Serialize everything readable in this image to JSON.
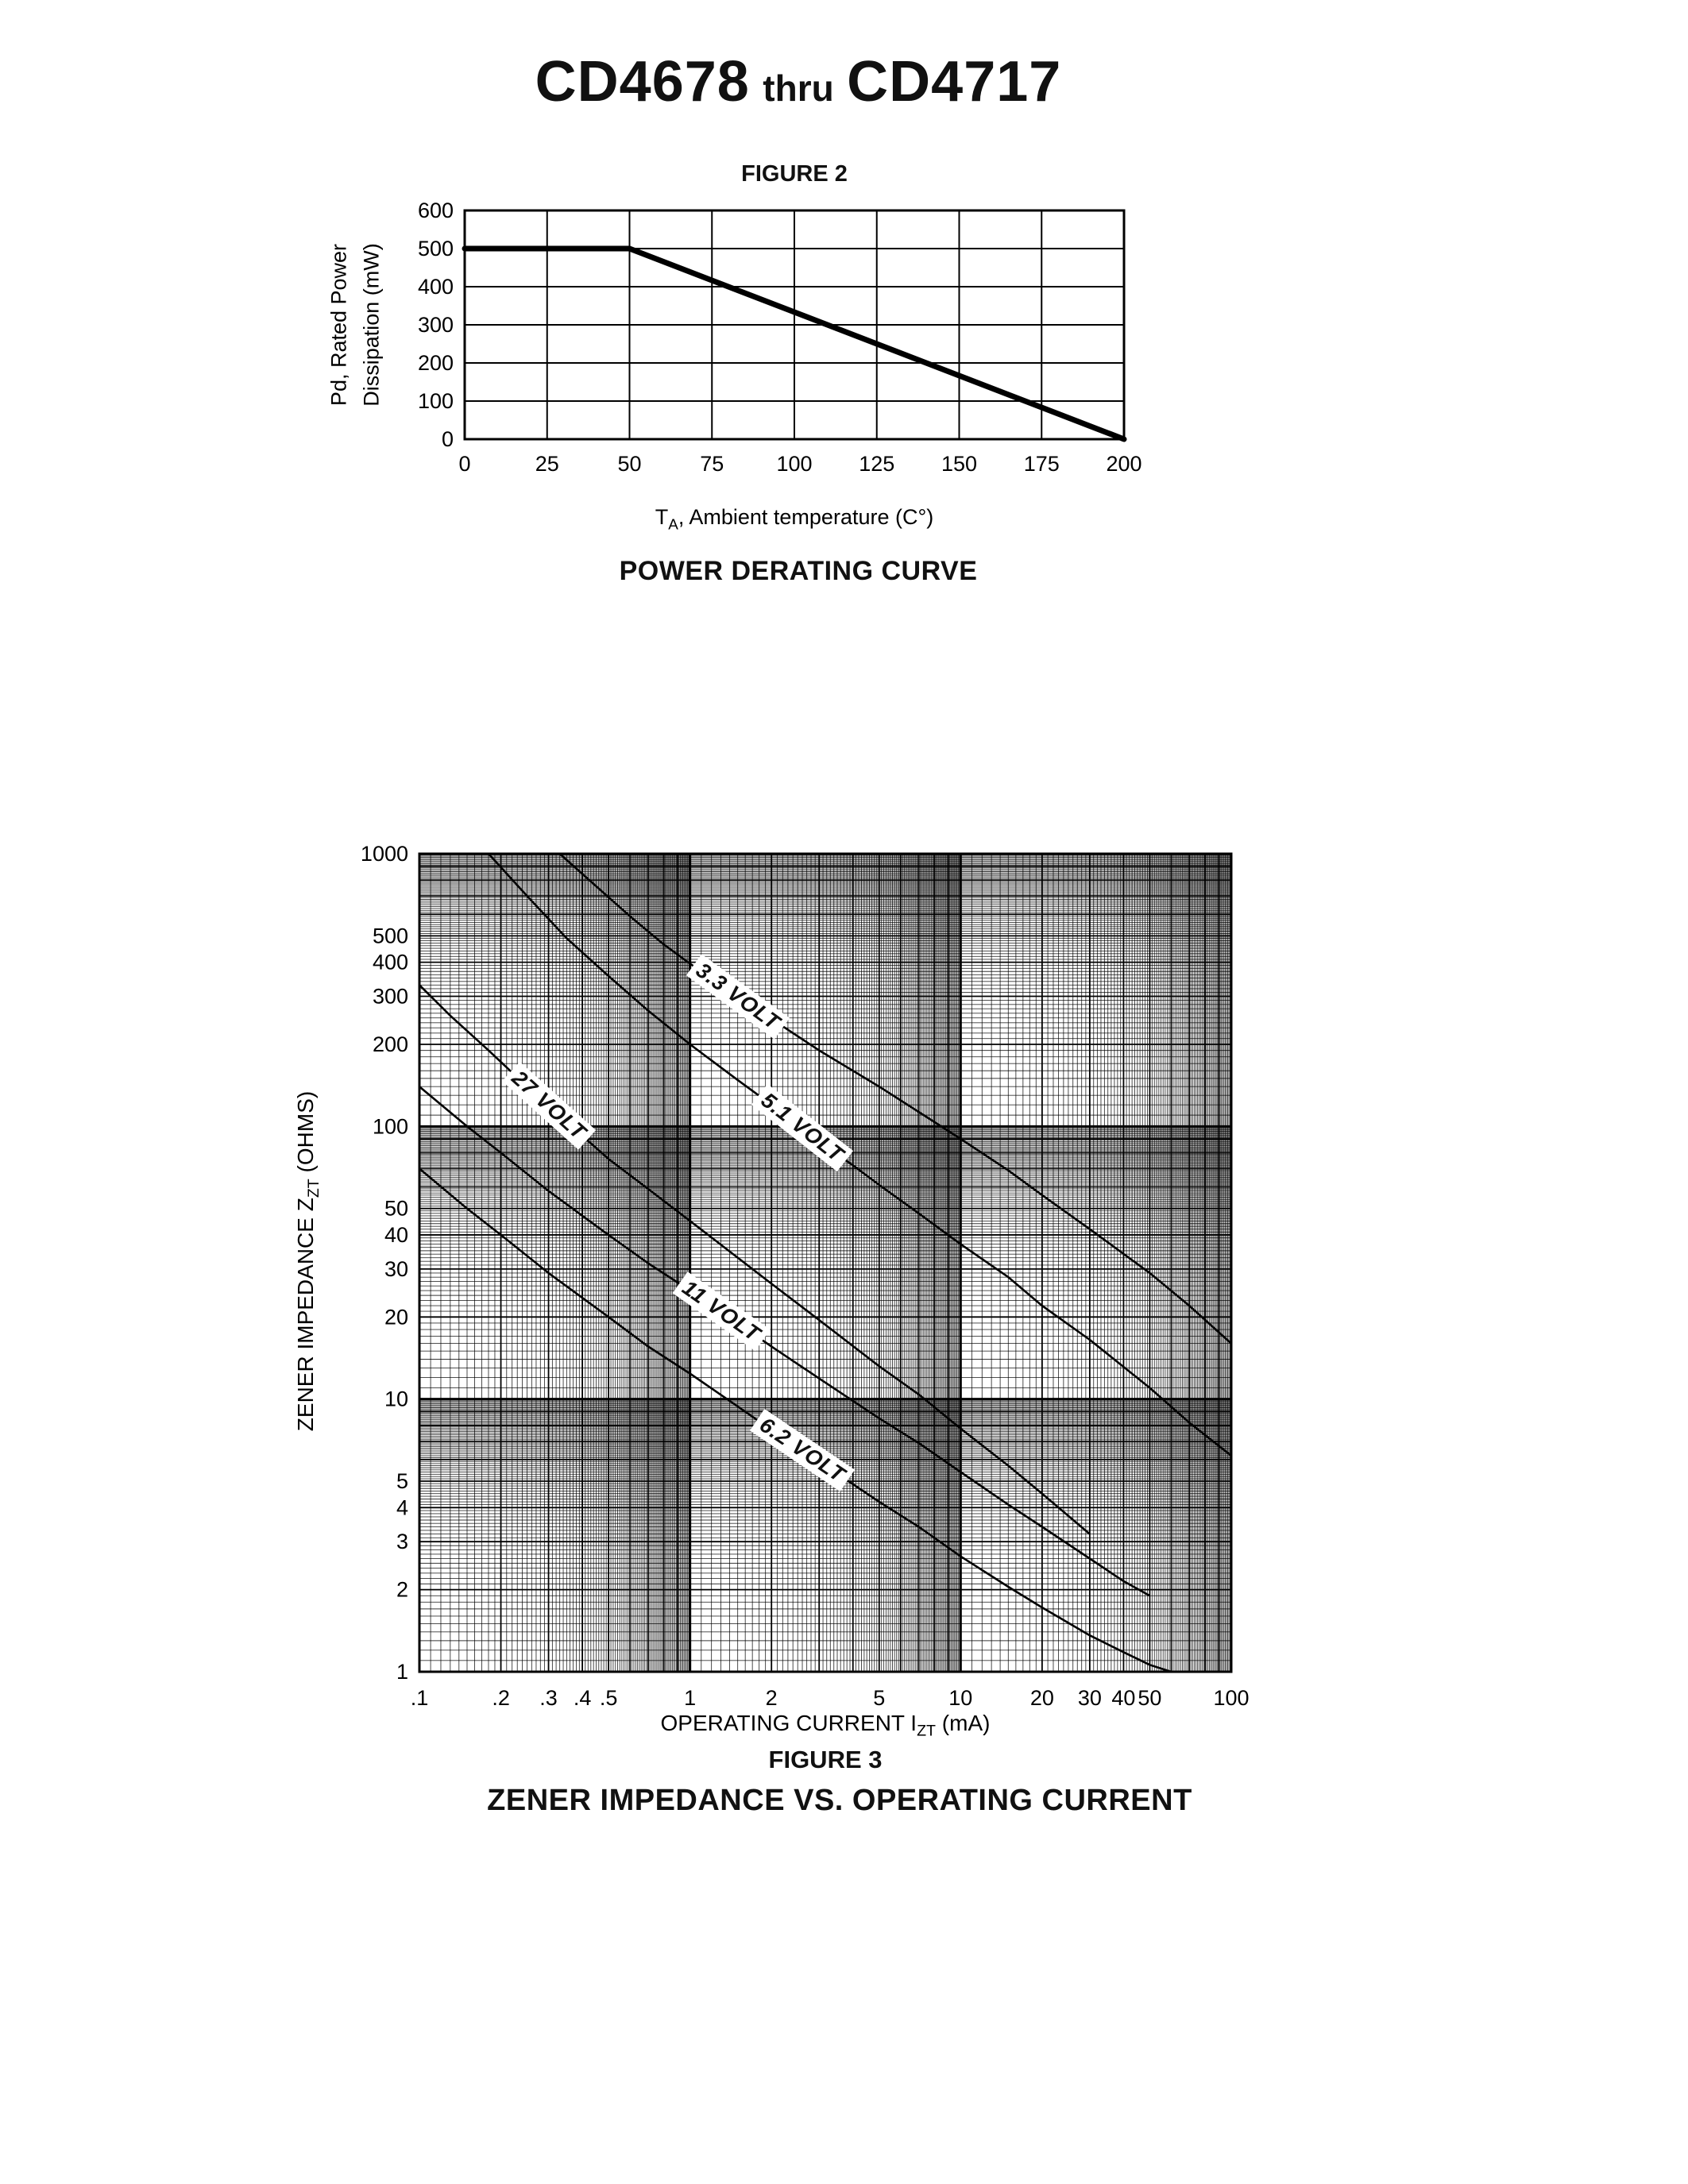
{
  "page": {
    "title": {
      "part1": "CD4678",
      "connector": "thru",
      "part2": "CD4717"
    }
  },
  "figure2": {
    "heading": "FIGURE 2",
    "caption": "POWER DERATING CURVE",
    "y_axis": {
      "line1": "Pd, Rated Power",
      "line2": "Dissipation (mW)"
    },
    "x_axis": {
      "prefix": "T",
      "sub": "A",
      "suffix": ", Ambient temperature (C°)"
    }
  },
  "figure3": {
    "heading": "FIGURE 3",
    "caption": "ZENER IMPEDANCE VS. OPERATING CURRENT",
    "y_axis": {
      "prefix": "ZENER IMPEDANCE Z",
      "sub": "ZT",
      "suffix": " (OHMS)"
    },
    "x_axis": {
      "prefix": "OPERATING CURRENT I",
      "sub": "ZT",
      "suffix": " (mA)"
    }
  },
  "chart_data": [
    {
      "id": "power-derating",
      "type": "line",
      "figure_label": "FIGURE 2",
      "title": "POWER DERATING CURVE",
      "xlabel": "TA, Ambient temperature (C°)",
      "ylabel": "Pd, Rated Power Dissipation (mW)",
      "xlim": [
        0,
        200
      ],
      "ylim": [
        0,
        600
      ],
      "x_ticks": [
        0,
        25,
        50,
        75,
        100,
        125,
        150,
        175,
        200
      ],
      "y_ticks": [
        0,
        100,
        200,
        300,
        400,
        500,
        600
      ],
      "grid": true,
      "legend": "none",
      "series": [
        {
          "name": "rated-power-dissipation",
          "points": [
            [
              0,
              500
            ],
            [
              50,
              500
            ],
            [
              200,
              0
            ]
          ]
        }
      ]
    },
    {
      "id": "zener-impedance",
      "type": "line",
      "figure_label": "FIGURE 3",
      "title": "ZENER IMPEDANCE VS. OPERATING CURRENT",
      "xlabel": "OPERATING CURRENT IZT (mA)",
      "ylabel": "ZENER IMPEDANCE ZZT (OHMS)",
      "x_scale": "log",
      "y_scale": "log",
      "xlim": [
        0.1,
        100
      ],
      "ylim": [
        1,
        1000
      ],
      "grid": "dense log-log graph paper",
      "legend": "inline rotated labels on curves",
      "x_ticks": [
        {
          "v": 0.1,
          "label": ".1"
        },
        {
          "v": 0.2,
          "label": ".2"
        },
        {
          "v": 0.3,
          "label": ".3"
        },
        {
          "v": 0.4,
          "label": ".4"
        },
        {
          "v": 0.5,
          "label": ".5"
        },
        {
          "v": 1,
          "label": "1"
        },
        {
          "v": 2,
          "label": "2"
        },
        {
          "v": 5,
          "label": "5"
        },
        {
          "v": 10,
          "label": "10"
        },
        {
          "v": 20,
          "label": "20"
        },
        {
          "v": 30,
          "label": "30"
        },
        {
          "v": 40,
          "label": "40"
        },
        {
          "v": 50,
          "label": "50"
        },
        {
          "v": 100,
          "label": "100"
        }
      ],
      "y_ticks": [
        {
          "v": 1000,
          "label": "1000"
        },
        {
          "v": 500,
          "label": "500"
        },
        {
          "v": 400,
          "label": "400"
        },
        {
          "v": 300,
          "label": "300"
        },
        {
          "v": 200,
          "label": "200"
        },
        {
          "v": 100,
          "label": "100"
        },
        {
          "v": 50,
          "label": "50"
        },
        {
          "v": 40,
          "label": "40"
        },
        {
          "v": 30,
          "label": "30"
        },
        {
          "v": 20,
          "label": "20"
        },
        {
          "v": 10,
          "label": "10"
        },
        {
          "v": 5,
          "label": "5"
        },
        {
          "v": 4,
          "label": "4"
        },
        {
          "v": 3,
          "label": "3"
        },
        {
          "v": 2,
          "label": "2"
        },
        {
          "v": 1,
          "label": "1"
        }
      ],
      "series": [
        {
          "name": "3.3 VOLT",
          "label": {
            "x": 1.5,
            "y": 300,
            "angle": 36
          },
          "points": [
            [
              0.33,
              1000
            ],
            [
              0.45,
              760
            ],
            [
              0.6,
              590
            ],
            [
              0.8,
              465
            ],
            [
              1,
              395
            ],
            [
              1.5,
              300
            ],
            [
              2,
              248
            ],
            [
              3,
              190
            ],
            [
              4,
              160
            ],
            [
              5,
              140
            ],
            [
              7,
              113
            ],
            [
              10,
              90
            ],
            [
              15,
              69
            ],
            [
              20,
              56
            ],
            [
              30,
              42
            ],
            [
              50,
              29
            ],
            [
              70,
              22
            ],
            [
              100,
              16
            ]
          ]
        },
        {
          "name": "5.1 VOLT",
          "label": {
            "x": 2.6,
            "y": 99,
            "angle": 38
          },
          "points": [
            [
              0.18,
              1000
            ],
            [
              0.25,
              700
            ],
            [
              0.35,
              490
            ],
            [
              0.5,
              356
            ],
            [
              0.7,
              266
            ],
            [
              1,
              200
            ],
            [
              1.5,
              148
            ],
            [
              2,
              120
            ],
            [
              3,
              88
            ],
            [
              4,
              72
            ],
            [
              5,
              61
            ],
            [
              7,
              48
            ],
            [
              10,
              37
            ],
            [
              15,
              28
            ],
            [
              20,
              22
            ],
            [
              30,
              16.5
            ],
            [
              50,
              11
            ],
            [
              70,
              8.2
            ],
            [
              100,
              6.2
            ]
          ]
        },
        {
          "name": "27 VOLT",
          "label": {
            "x": 0.3,
            "y": 119,
            "angle": 42
          },
          "points": [
            [
              0.1,
              330
            ],
            [
              0.13,
              255
            ],
            [
              0.18,
              190
            ],
            [
              0.25,
              140
            ],
            [
              0.35,
              104
            ],
            [
              0.5,
              76
            ],
            [
              0.7,
              59
            ],
            [
              1,
              45
            ],
            [
              1.5,
              33
            ],
            [
              2,
              26.5
            ],
            [
              3,
              19.5
            ],
            [
              5,
              13.2
            ],
            [
              7,
              10.4
            ],
            [
              10,
              7.8
            ],
            [
              15,
              5.7
            ],
            [
              20,
              4.5
            ],
            [
              30,
              3.2
            ]
          ]
        },
        {
          "name": "11 VOLT",
          "label": {
            "x": 1.3,
            "y": 21,
            "angle": 35
          },
          "points": [
            [
              0.1,
              140
            ],
            [
              0.15,
              100
            ],
            [
              0.2,
              80
            ],
            [
              0.3,
              58
            ],
            [
              0.5,
              40
            ],
            [
              0.7,
              31.5
            ],
            [
              1,
              25
            ],
            [
              1.5,
              19
            ],
            [
              2,
              15.6
            ],
            [
              3,
              11.9
            ],
            [
              5,
              8.5
            ],
            [
              7,
              6.9
            ],
            [
              10,
              5.4
            ],
            [
              15,
              4.1
            ],
            [
              20,
              3.4
            ],
            [
              30,
              2.6
            ],
            [
              40,
              2.15
            ],
            [
              50,
              1.9
            ]
          ]
        },
        {
          "name": "6.2 VOLT",
          "label": {
            "x": 2.6,
            "y": 6.5,
            "angle": 34
          },
          "points": [
            [
              0.1,
              70
            ],
            [
              0.15,
              50
            ],
            [
              0.2,
              40
            ],
            [
              0.3,
              29
            ],
            [
              0.5,
              20
            ],
            [
              0.7,
              15.6
            ],
            [
              1,
              12.4
            ],
            [
              1.5,
              9.4
            ],
            [
              2,
              7.7
            ],
            [
              3,
              5.9
            ],
            [
              5,
              4.2
            ],
            [
              7,
              3.4
            ],
            [
              10,
              2.65
            ],
            [
              15,
              2.05
            ],
            [
              20,
              1.72
            ],
            [
              30,
              1.36
            ],
            [
              40,
              1.18
            ],
            [
              50,
              1.06
            ],
            [
              60,
              1.0
            ]
          ]
        }
      ]
    }
  ]
}
